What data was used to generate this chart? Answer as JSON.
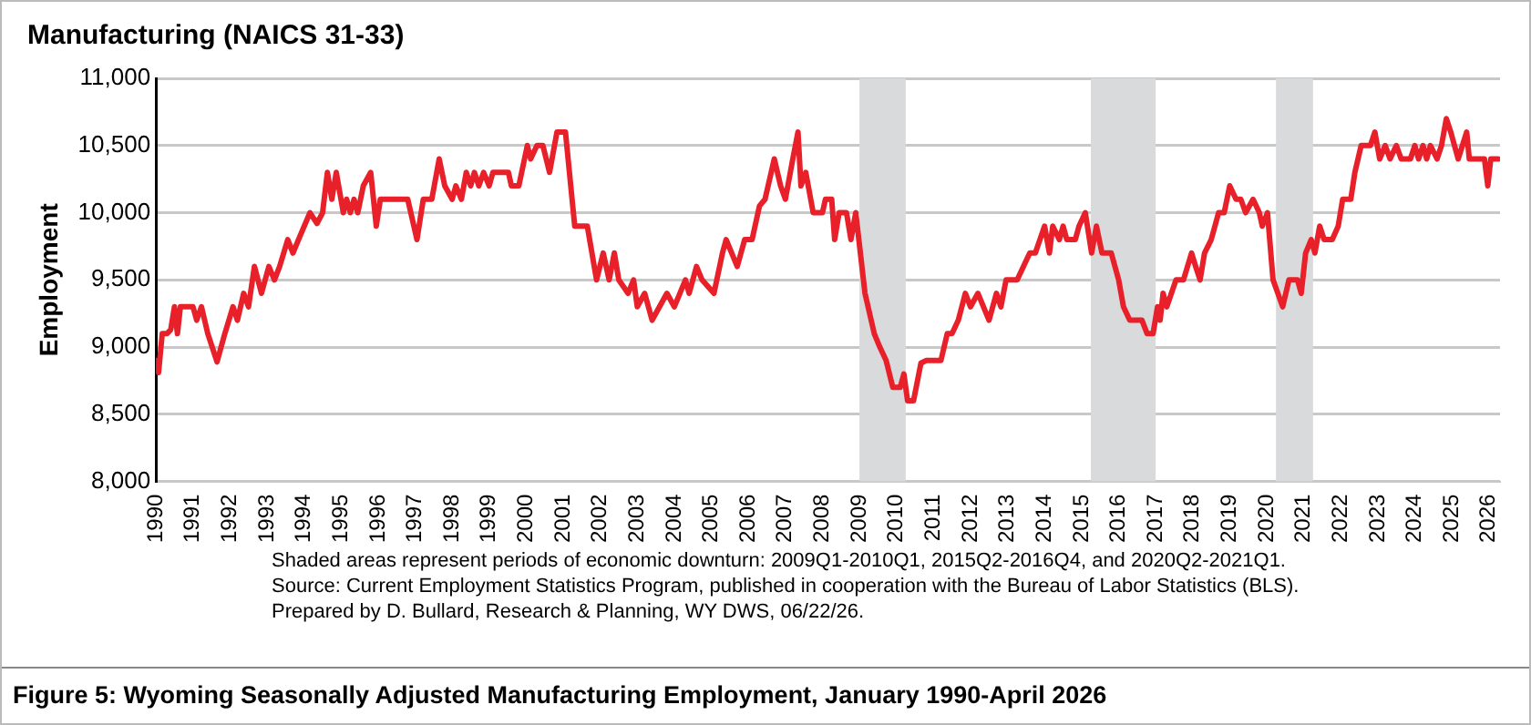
{
  "chart_data": {
    "type": "line",
    "title": "Manufacturing (NAICS 31-33)",
    "ylabel": "Employment",
    "x": [
      1990,
      1990.07,
      1990.17,
      1990.3,
      1990.4,
      1990.5,
      1990.58,
      1990.66,
      1991,
      1991.1,
      1991.23,
      1991.4,
      1991.65,
      1991.86,
      1992.08,
      1992.2,
      1992.37,
      1992.5,
      1992.66,
      1992.85,
      1993.05,
      1993.2,
      1993.34,
      1993.56,
      1993.7,
      1993.85,
      1994.16,
      1994.35,
      1994.5,
      1994.63,
      1994.75,
      1994.87,
      1995.06,
      1995.15,
      1995.25,
      1995.35,
      1995.45,
      1995.6,
      1995.8,
      1995.95,
      1996.06,
      1996.8,
      1997.05,
      1997.22,
      1997.45,
      1997.65,
      1997.8,
      1998,
      1998.1,
      1998.25,
      1998.38,
      1998.5,
      1998.6,
      1998.72,
      1998.85,
      1999,
      1999.1,
      1999.52,
      1999.6,
      1999.8,
      2000.03,
      2000.12,
      2000.29,
      2000.45,
      2000.63,
      2000.83,
      2001.06,
      2001.31,
      2001.65,
      2001.9,
      2002.08,
      2002.24,
      2002.38,
      2002.5,
      2002.75,
      2002.9,
      2003,
      2003.2,
      2003.4,
      2003.6,
      2003.8,
      2004,
      2004.15,
      2004.3,
      2004.4,
      2004.6,
      2004.75,
      2005.07,
      2005.3,
      2005.4,
      2005.7,
      2005.9,
      2006.1,
      2006.3,
      2006.45,
      2006.7,
      2006.87,
      2007,
      2007.2,
      2007.34,
      2007.42,
      2007.55,
      2007.75,
      2008,
      2008.08,
      2008.25,
      2008.33,
      2008.45,
      2008.65,
      2008.77,
      2008.9,
      2009.15,
      2009.4,
      2009.55,
      2009.72,
      2009.9,
      2010.1,
      2010.2,
      2010.3,
      2010.46,
      2010.66,
      2010.8,
      2011.04,
      2011.2,
      2011.37,
      2011.5,
      2011.67,
      2011.86,
      2012,
      2012.2,
      2012.5,
      2012.7,
      2012.82,
      2012.96,
      2013.26,
      2013.6,
      2013.75,
      2014,
      2014.13,
      2014.22,
      2014.4,
      2014.5,
      2014.6,
      2014.83,
      2014.93,
      2015.1,
      2015.27,
      2015.4,
      2015.55,
      2015.8,
      2016,
      2016.13,
      2016.3,
      2016.63,
      2016.77,
      2016.93,
      2017.05,
      2017.12,
      2017.2,
      2017.3,
      2017.55,
      2017.75,
      2017.97,
      2018.08,
      2018.2,
      2018.32,
      2018.5,
      2018.7,
      2018.85,
      2019,
      2019.17,
      2019.3,
      2019.43,
      2019.63,
      2019.8,
      2019.88,
      2020.02,
      2020.17,
      2020.43,
      2020.6,
      2020.83,
      2020.93,
      2021.05,
      2021.2,
      2021.3,
      2021.43,
      2021.55,
      2021.77,
      2021.93,
      2022.05,
      2022.27,
      2022.38,
      2022.55,
      2022.8,
      2022.92,
      2023.05,
      2023.2,
      2023.33,
      2023.5,
      2023.63,
      2023.88,
      2024,
      2024.1,
      2024.22,
      2024.32,
      2024.42,
      2024.6,
      2024.72,
      2024.85,
      2024.97,
      2025.17,
      2025.4,
      2025.47,
      2025.88,
      2025.97,
      2026.05,
      2026.25
    ],
    "series": [
      {
        "color": "#e8202a",
        "values": [
          8900,
          8810,
          9100,
          9100,
          9130,
          9300,
          9100,
          9300,
          9300,
          9200,
          9300,
          9100,
          8890,
          9100,
          9300,
          9200,
          9400,
          9300,
          9600,
          9400,
          9600,
          9500,
          9600,
          9800,
          9700,
          9800,
          10000,
          9920,
          10000,
          10300,
          10100,
          10300,
          10000,
          10100,
          10000,
          10100,
          10000,
          10200,
          10300,
          9900,
          10100,
          10100,
          9800,
          10100,
          10100,
          10400,
          10200,
          10100,
          10200,
          10100,
          10300,
          10200,
          10300,
          10200,
          10300,
          10200,
          10300,
          10300,
          10200,
          10200,
          10500,
          10400,
          10500,
          10500,
          10300,
          10600,
          10600,
          9900,
          9900,
          9500,
          9700,
          9500,
          9700,
          9500,
          9400,
          9500,
          9300,
          9400,
          9200,
          9300,
          9400,
          9300,
          9400,
          9500,
          9400,
          9600,
          9500,
          9400,
          9700,
          9800,
          9600,
          9800,
          9800,
          10050,
          10100,
          10400,
          10200,
          10100,
          10400,
          10600,
          10200,
          10300,
          10000,
          10000,
          10100,
          10100,
          9800,
          10000,
          10000,
          9800,
          10000,
          9400,
          9100,
          9000,
          8900,
          8700,
          8700,
          8800,
          8600,
          8600,
          8880,
          8900,
          8900,
          8900,
          9100,
          9100,
          9200,
          9400,
          9300,
          9400,
          9200,
          9400,
          9300,
          9500,
          9500,
          9700,
          9700,
          9900,
          9700,
          9900,
          9800,
          9900,
          9800,
          9800,
          9900,
          10000,
          9700,
          9900,
          9700,
          9700,
          9500,
          9300,
          9200,
          9200,
          9100,
          9100,
          9300,
          9200,
          9400,
          9300,
          9500,
          9500,
          9700,
          9600,
          9500,
          9700,
          9800,
          10000,
          10000,
          10200,
          10100,
          10100,
          10000,
          10100,
          10000,
          9900,
          10000,
          9500,
          9300,
          9500,
          9500,
          9400,
          9700,
          9800,
          9700,
          9900,
          9800,
          9800,
          9900,
          10100,
          10100,
          10300,
          10500,
          10500,
          10600,
          10400,
          10500,
          10400,
          10500,
          10400,
          10400,
          10500,
          10400,
          10500,
          10400,
          10500,
          10400,
          10500,
          10700,
          10600,
          10400,
          10600,
          10400,
          10400,
          10200,
          10400,
          10400
        ]
      }
    ],
    "xlim": [
      1990,
      2026.3
    ],
    "xticks": [
      1990,
      1991,
      1992,
      1993,
      1994,
      1995,
      1996,
      1997,
      1998,
      1999,
      2000,
      2001,
      2002,
      2003,
      2004,
      2005,
      2006,
      2007,
      2008,
      2009,
      2010,
      2011,
      2012,
      2013,
      2014,
      2015,
      2016,
      2017,
      2018,
      2019,
      2020,
      2021,
      2022,
      2023,
      2024,
      2025,
      2026
    ],
    "ylim": [
      8000,
      11000
    ],
    "yticks": [
      {
        "value": 8000,
        "label": "8,000"
      },
      {
        "value": 8500,
        "label": "8,500"
      },
      {
        "value": 9000,
        "label": "9,000"
      },
      {
        "value": 9500,
        "label": "9,500"
      },
      {
        "value": 10000,
        "label": "10,000"
      },
      {
        "value": 10500,
        "label": "10,500"
      },
      {
        "value": 11000,
        "label": "11,000"
      }
    ],
    "grid": "y",
    "legend": false,
    "marker": "none",
    "line_style": "solid",
    "bands": [
      {
        "axis": "x",
        "from": 2009,
        "to": 2010.25,
        "color": "#d9dadc"
      },
      {
        "axis": "x",
        "from": 2015.25,
        "to": 2017,
        "color": "#d9dadc"
      },
      {
        "axis": "x",
        "from": 2020.25,
        "to": 2021.25,
        "color": "#d9dadc"
      }
    ],
    "annotations": [
      "Shaded areas represent periods of economic downturn: 2009Q1-2010Q1, 2015Q2-2016Q4, and 2020Q2-2021Q1.",
      "Source: Current Employment Statistics Program, published in cooperation with the Bureau of Labor Statistics (BLS).",
      "Prepared by D. Bullard, Research & Planning, WY DWS, 06/22/26.",
      "Figure 5: Wyoming Seasonally Adjusted Manufacturing Employment, January 1990-April 2026"
    ]
  }
}
